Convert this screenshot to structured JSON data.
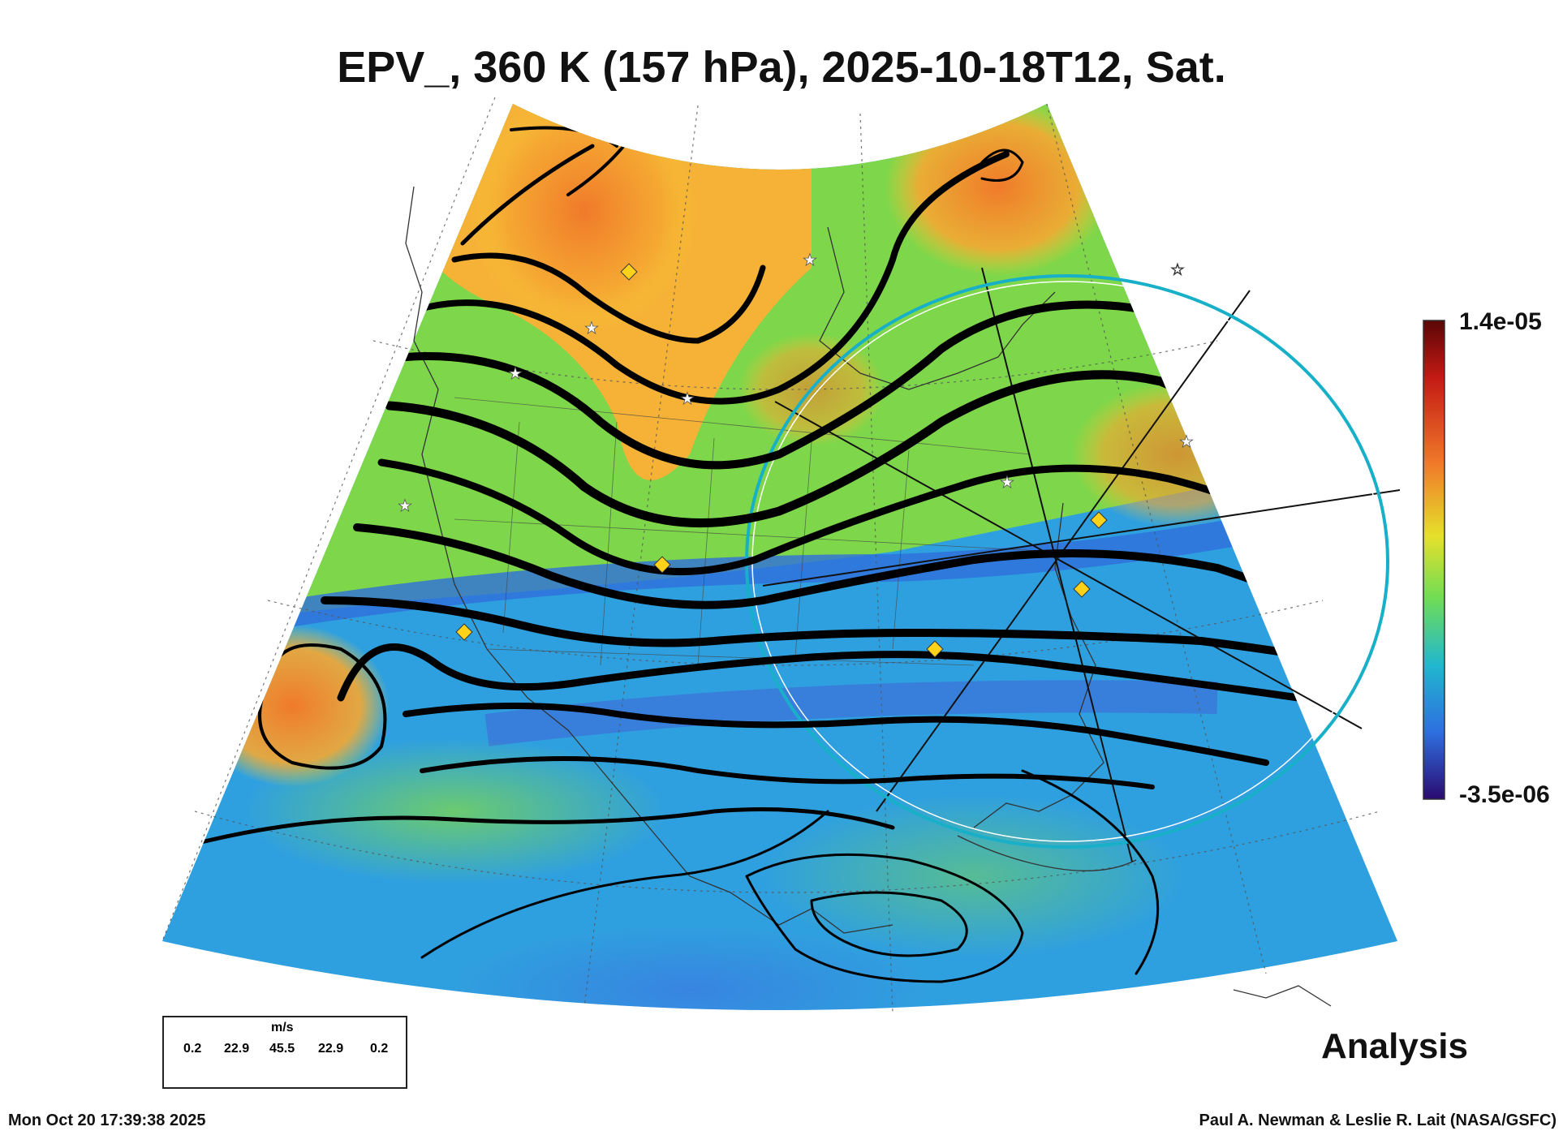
{
  "title": "EPV_, 360 K (157 hPa), 2025-10-18T12, Sat.",
  "colorbar": {
    "max_label": "1.4e-05",
    "min_label": "-3.5e-06"
  },
  "legend": {
    "unit": "m/s",
    "values": [
      "0.2",
      "22.9",
      "45.5",
      "22.9",
      "0.2"
    ]
  },
  "analysis_label": "Analysis",
  "timestamp": "Mon Oct 20 17:39:38 2025",
  "credit": "Paul A. Newman & Leslie R. Lait (NASA/GSFC)",
  "colors": {
    "high": "#f07a2a",
    "mid": "#9bdc4a",
    "low": "#2f9fe0",
    "ring": "#18b0c8",
    "marker": "#ffd21a"
  }
}
